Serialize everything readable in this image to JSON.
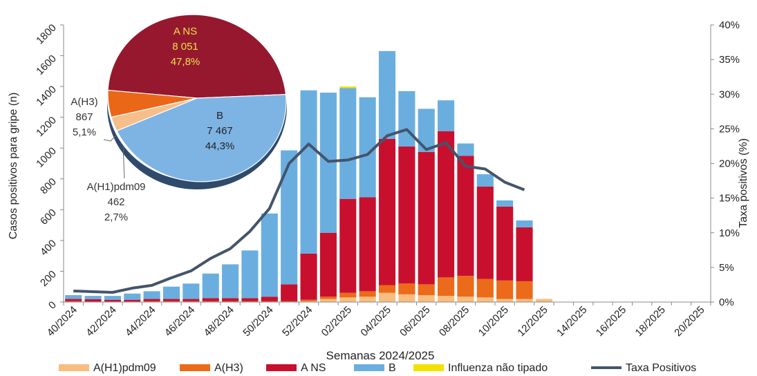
{
  "chart_data": {
    "type": "bar",
    "title": "",
    "xlabel": "Semanas 2024/2025",
    "ylabel": "Casos positivos para gripe (n)",
    "y2label": "Taxa positivos (%)",
    "ylim": [
      0,
      1800
    ],
    "y2lim": [
      0,
      40
    ],
    "yticks": [
      "0",
      "200",
      "400",
      "600",
      "800",
      "1000",
      "1200",
      "1400",
      "1600",
      "1800"
    ],
    "y2ticks": [
      "0%",
      "5%",
      "10%",
      "15%",
      "20%",
      "25%",
      "30%",
      "35%",
      "40%"
    ],
    "categories": [
      "40/2024",
      "41/2024",
      "42/2024",
      "43/2024",
      "44/2024",
      "45/2024",
      "46/2024",
      "47/2024",
      "48/2024",
      "49/2024",
      "50/2024",
      "51/2024",
      "52/2024",
      "01/2025",
      "02/2025",
      "03/2025",
      "04/2025",
      "05/2025",
      "06/2025",
      "07/2025",
      "08/2025",
      "09/2025",
      "10/2025",
      "11/2025",
      "12/2025",
      "13/2025",
      "14/2025",
      "15/2025",
      "16/2025",
      "17/2025",
      "18/2025",
      "19/2025",
      "20/2025"
    ],
    "xtick_labels": [
      "40/2024",
      "42/2024",
      "44/2024",
      "46/2024",
      "48/2024",
      "50/2024",
      "52/2024",
      "02/2025",
      "04/2025",
      "06/2025",
      "08/2025",
      "10/2025",
      "12/2025",
      "14/2025",
      "16/2025",
      "18/2025",
      "20/2025"
    ],
    "series": [
      {
        "name": "A(H1)pdm09",
        "color": "#f8bd7f",
        "values": [
          0,
          0,
          0,
          0,
          0,
          0,
          0,
          0,
          0,
          0,
          0,
          0,
          5,
          20,
          30,
          35,
          60,
          50,
          45,
          40,
          35,
          30,
          20,
          20,
          20,
          0,
          0,
          0,
          0,
          0,
          0,
          0,
          0
        ]
      },
      {
        "name": "A(H3)",
        "color": "#eb6b1a",
        "values": [
          5,
          3,
          3,
          3,
          5,
          5,
          5,
          5,
          5,
          5,
          5,
          5,
          10,
          15,
          30,
          35,
          50,
          70,
          70,
          120,
          135,
          120,
          120,
          115,
          0,
          0,
          0,
          0,
          0,
          0,
          0,
          0,
          0
        ]
      },
      {
        "name": "A NS",
        "color": "#c8102e",
        "values": [
          15,
          15,
          12,
          12,
          15,
          15,
          15,
          20,
          20,
          20,
          30,
          110,
          300,
          415,
          610,
          610,
          950,
          890,
          860,
          950,
          780,
          600,
          480,
          350,
          0,
          0,
          0,
          0,
          0,
          0,
          0,
          0,
          0
        ]
      },
      {
        "name": "B",
        "color": "#6aaee0",
        "values": [
          25,
          22,
          25,
          40,
          50,
          80,
          100,
          160,
          220,
          310,
          540,
          870,
          1060,
          910,
          720,
          650,
          570,
          360,
          280,
          200,
          80,
          80,
          40,
          45,
          0,
          0,
          0,
          0,
          0,
          0,
          0,
          0,
          0
        ]
      },
      {
        "name": "Influenza não tipado",
        "color": "#f5e100",
        "values": [
          0,
          0,
          0,
          0,
          0,
          0,
          0,
          0,
          0,
          0,
          0,
          0,
          0,
          0,
          10,
          0,
          0,
          0,
          0,
          0,
          0,
          0,
          0,
          0,
          0,
          0,
          0,
          0,
          0,
          0,
          0,
          0,
          0
        ]
      }
    ],
    "line": {
      "name": "Taxa Positivos",
      "color": "#44546a",
      "values": [
        1.6,
        1.5,
        1.4,
        2.0,
        2.4,
        3.5,
        4.5,
        6.3,
        7.7,
        10.2,
        13.5,
        20.0,
        22.8,
        20.3,
        20.5,
        21.3,
        24.0,
        24.9,
        22.0,
        23.0,
        19.6,
        19.2,
        17.3,
        16.2,
        null,
        null,
        null,
        null,
        null,
        null,
        null,
        null,
        null
      ]
    },
    "legend_position": "bottom",
    "pie": {
      "type": "pie",
      "slices": [
        {
          "label": "A NS",
          "value": 8051,
          "value_text": "8 051",
          "percent": 47.8,
          "percent_text": "47,8%",
          "color": "#96182e"
        },
        {
          "label": "B",
          "value": 7467,
          "value_text": "7 467",
          "percent": 44.3,
          "percent_text": "44,3%",
          "color": "#7db4e4"
        },
        {
          "label": "A(H1)pdm09",
          "value": 462,
          "value_text": "462",
          "percent": 2.7,
          "percent_text": "2,7%",
          "color": "#f5be8a"
        },
        {
          "label": "A(H3)",
          "value": 867,
          "value_text": "867",
          "percent": 5.1,
          "percent_text": "5,1%",
          "color": "#ea6717"
        }
      ]
    }
  }
}
